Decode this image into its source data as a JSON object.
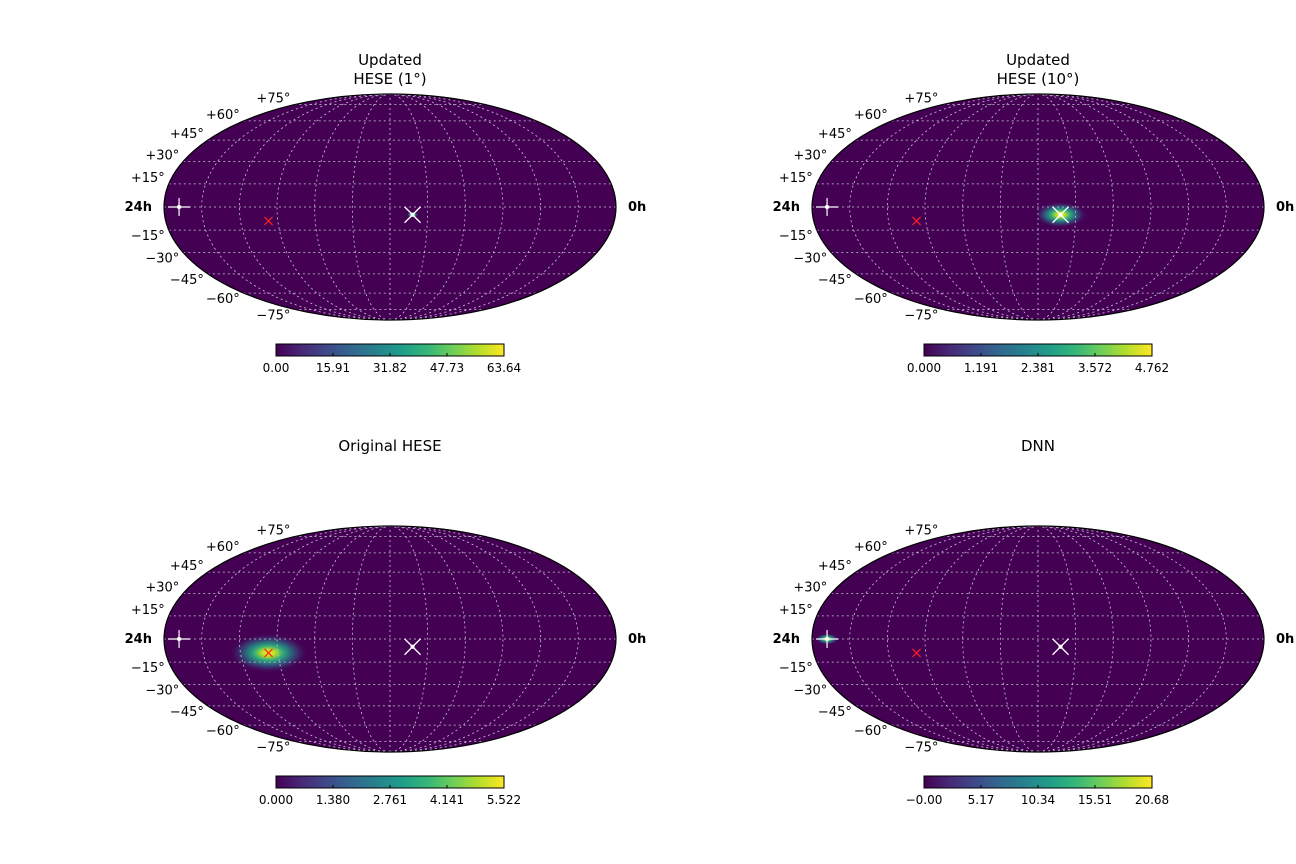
{
  "colors": {
    "background": "#440154",
    "grid": "#c8c8d8",
    "source_marker": "#ffffff",
    "reference_marker": "#ff2020",
    "colormap": [
      "#440154",
      "#482878",
      "#3e4989",
      "#31688e",
      "#26828e",
      "#1f9e89",
      "#35b779",
      "#6ece58",
      "#b5de2b",
      "#fde725"
    ]
  },
  "chart_data": [
    {
      "type": "heatmap",
      "projection": "mollweide",
      "title_lines": [
        "Updated",
        "HESE (1°)"
      ],
      "lat_labels": [
        "+75°",
        "+60°",
        "+45°",
        "+30°",
        "+15°",
        "−15°",
        "−30°",
        "−45°",
        "−60°",
        "−75°"
      ],
      "lat_values": [
        75,
        60,
        45,
        30,
        15,
        -15,
        -30,
        -45,
        -60,
        -75
      ],
      "ra_left_label": "24h",
      "ra_right_label": "0h",
      "grid": true,
      "hotspot": {
        "ra_hours": 10.8,
        "dec_deg": -5,
        "spread_deg": 1.8
      },
      "markers": {
        "cross_ra_hours": 23.2,
        "cross_dec_deg": 0,
        "x_ra_hours": 10.8,
        "x_dec_deg": -5,
        "red_ra_hours": 18.5,
        "red_dec_deg": -9
      },
      "colorbar": {
        "min": 0.0,
        "max": 63.64,
        "ticks": [
          "0.00",
          "15.91",
          "31.82",
          "47.73",
          "63.64"
        ]
      }
    },
    {
      "type": "heatmap",
      "projection": "mollweide",
      "title_lines": [
        "Updated",
        "HESE (10°)"
      ],
      "lat_labels": [
        "+75°",
        "+60°",
        "+45°",
        "+30°",
        "+15°",
        "−15°",
        "−30°",
        "−45°",
        "−60°",
        "−75°"
      ],
      "lat_values": [
        75,
        60,
        45,
        30,
        15,
        -15,
        -30,
        -45,
        -60,
        -75
      ],
      "ra_left_label": "24h",
      "ra_right_label": "0h",
      "grid": true,
      "hotspot": {
        "ra_hours": 10.8,
        "dec_deg": -5,
        "spread_deg": 8
      },
      "markers": {
        "cross_ra_hours": 23.2,
        "cross_dec_deg": 0,
        "x_ra_hours": 10.8,
        "x_dec_deg": -5,
        "red_ra_hours": 18.5,
        "red_dec_deg": -9
      },
      "colorbar": {
        "min": 0.0,
        "max": 4.762,
        "ticks": [
          "0.000",
          "1.191",
          "2.381",
          "3.572",
          "4.762"
        ]
      }
    },
    {
      "type": "heatmap",
      "projection": "mollweide",
      "title_lines": [
        "Original HESE"
      ],
      "lat_labels": [
        "+75°",
        "+60°",
        "+45°",
        "+30°",
        "+15°",
        "−15°",
        "−30°",
        "−45°",
        "−60°",
        "−75°"
      ],
      "lat_values": [
        75,
        60,
        45,
        30,
        15,
        -15,
        -30,
        -45,
        -60,
        -75
      ],
      "ra_left_label": "24h",
      "ra_right_label": "0h",
      "grid": true,
      "hotspot": {
        "ra_hours": 18.5,
        "dec_deg": -9,
        "spread_deg": 12
      },
      "markers": {
        "cross_ra_hours": 23.2,
        "cross_dec_deg": 0,
        "x_ra_hours": 10.8,
        "x_dec_deg": -5,
        "red_ra_hours": 18.5,
        "red_dec_deg": -9
      },
      "colorbar": {
        "min": 0.0,
        "max": 5.522,
        "ticks": [
          "0.000",
          "1.380",
          "2.761",
          "4.141",
          "5.522"
        ]
      }
    },
    {
      "type": "heatmap",
      "projection": "mollweide",
      "title_lines": [
        "DNN"
      ],
      "lat_labels": [
        "+75°",
        "+60°",
        "+45°",
        "+30°",
        "+15°",
        "−15°",
        "−30°",
        "−45°",
        "−60°",
        "−75°"
      ],
      "lat_values": [
        75,
        60,
        45,
        30,
        15,
        -15,
        -30,
        -45,
        -60,
        -75
      ],
      "ra_left_label": "24h",
      "ra_right_label": "0h",
      "grid": true,
      "hotspot": {
        "ra_hours": 23.2,
        "dec_deg": 0,
        "spread_deg": 3.5
      },
      "markers": {
        "cross_ra_hours": 23.2,
        "cross_dec_deg": 0,
        "x_ra_hours": 10.8,
        "x_dec_deg": -5,
        "red_ra_hours": 18.5,
        "red_dec_deg": -9
      },
      "colorbar": {
        "min": -0.0,
        "max": 20.68,
        "ticks": [
          "−0.00",
          "5.17",
          "10.34",
          "15.51",
          "20.68"
        ]
      }
    }
  ]
}
